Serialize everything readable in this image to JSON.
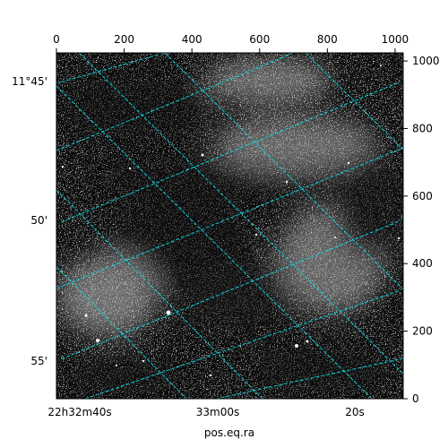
{
  "chart_data": {
    "type": "heatmap",
    "title": "",
    "colormap": "gray",
    "grid": true,
    "grid_color": "#00e5ee",
    "xlabel": "pos.eq.ra",
    "ylabel": "",
    "pixel_axes": {
      "x_range": [
        0,
        1024
      ],
      "y_range": [
        0,
        1024
      ],
      "x_ticks": [
        0,
        200,
        400,
        600,
        800,
        1000
      ],
      "y_ticks": [
        0,
        200,
        400,
        600,
        800,
        1000
      ]
    },
    "world_axes": {
      "ra_tick_labels": [
        "22h32m40s",
        "33m00s",
        "20s"
      ],
      "dec_tick_labels": [
        "11°45'",
        "50'",
        "55'"
      ]
    }
  }
}
